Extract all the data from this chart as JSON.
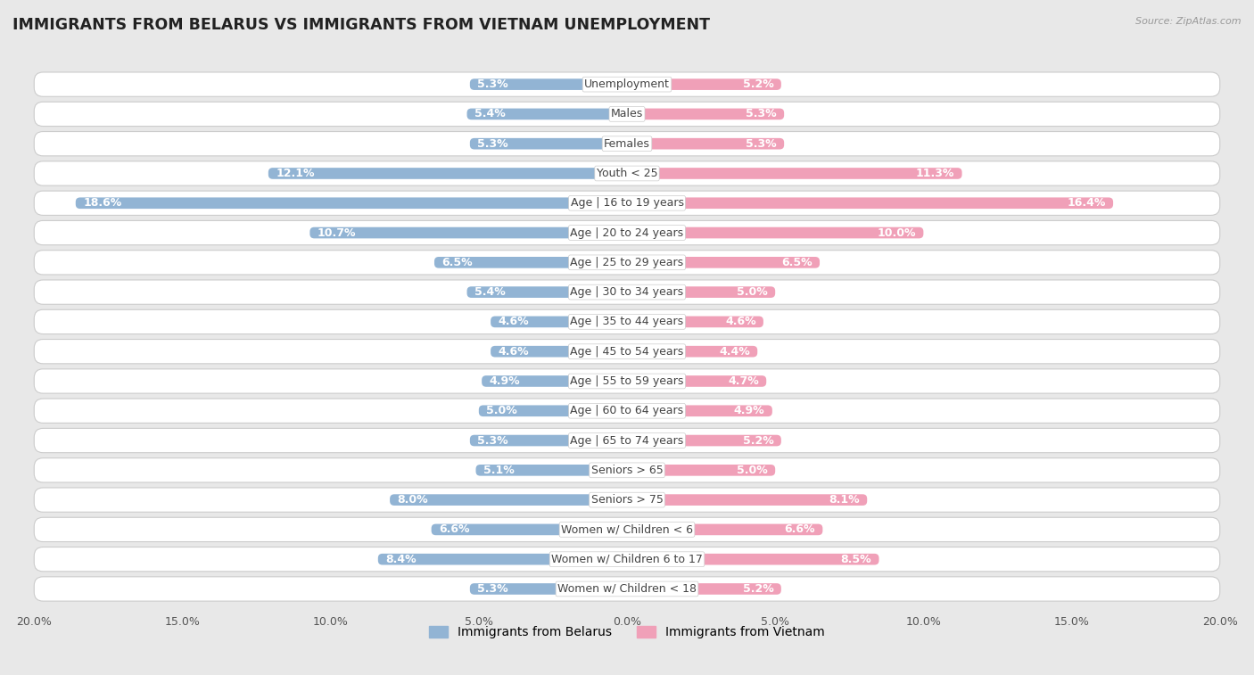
{
  "title": "IMMIGRANTS FROM BELARUS VS IMMIGRANTS FROM VIETNAM UNEMPLOYMENT",
  "source": "Source: ZipAtlas.com",
  "categories": [
    "Unemployment",
    "Males",
    "Females",
    "Youth < 25",
    "Age | 16 to 19 years",
    "Age | 20 to 24 years",
    "Age | 25 to 29 years",
    "Age | 30 to 34 years",
    "Age | 35 to 44 years",
    "Age | 45 to 54 years",
    "Age | 55 to 59 years",
    "Age | 60 to 64 years",
    "Age | 65 to 74 years",
    "Seniors > 65",
    "Seniors > 75",
    "Women w/ Children < 6",
    "Women w/ Children 6 to 17",
    "Women w/ Children < 18"
  ],
  "belarus_values": [
    5.3,
    5.4,
    5.3,
    12.1,
    18.6,
    10.7,
    6.5,
    5.4,
    4.6,
    4.6,
    4.9,
    5.0,
    5.3,
    5.1,
    8.0,
    6.6,
    8.4,
    5.3
  ],
  "vietnam_values": [
    5.2,
    5.3,
    5.3,
    11.3,
    16.4,
    10.0,
    6.5,
    5.0,
    4.6,
    4.4,
    4.7,
    4.9,
    5.2,
    5.0,
    8.1,
    6.6,
    8.5,
    5.2
  ],
  "belarus_color": "#92b4d4",
  "vietnam_color": "#f0a0b8",
  "axis_max": 20.0,
  "page_bg": "#e8e8e8",
  "row_bg": "#ffffff",
  "label_fontsize": 9.0,
  "value_fontsize": 9.0,
  "title_fontsize": 12.5,
  "legend_fontsize": 10.0
}
